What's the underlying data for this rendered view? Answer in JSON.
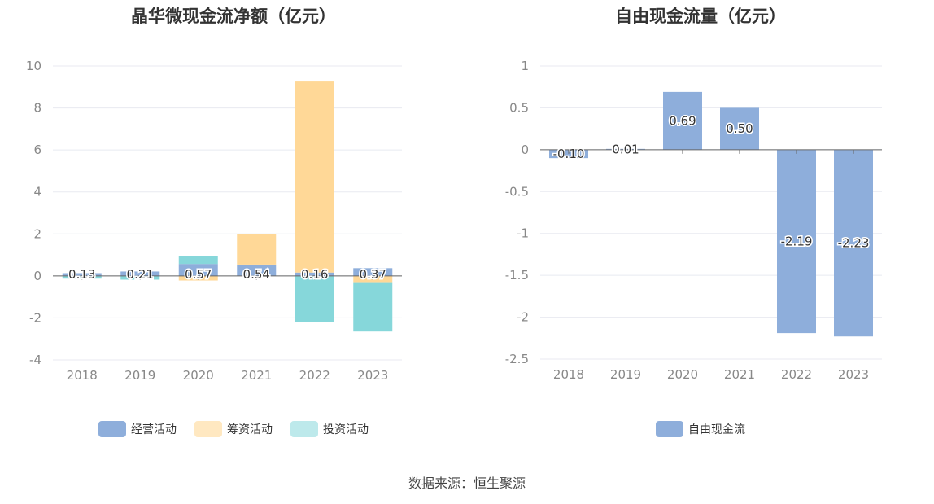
{
  "source_text": "数据来源：恒生聚源",
  "chart_data": [
    {
      "type": "bar",
      "stacked": true,
      "title": "晶华微现金流净额（亿元）",
      "categories": [
        "2018",
        "2019",
        "2020",
        "2021",
        "2022",
        "2023"
      ],
      "ylim": [
        -4,
        10
      ],
      "yticks": [
        -4,
        -2,
        0,
        2,
        4,
        6,
        8,
        10
      ],
      "ytick_labels": [
        "-4",
        "-2",
        "0",
        "2",
        "4",
        "6",
        "8",
        "10"
      ],
      "grid": true,
      "legend_position": "bottom",
      "series": [
        {
          "name": "经营活动",
          "color": "#8eaedb",
          "values": [
            0.13,
            0.21,
            0.57,
            0.54,
            0.16,
            0.37
          ],
          "labels": [
            "0.13",
            "0.21",
            "0.57",
            "0.54",
            "0.16",
            "0.37"
          ]
        },
        {
          "name": "筹资活动",
          "color": "#ffd897",
          "values": [
            0.0,
            0.0,
            -0.22,
            1.45,
            9.1,
            -0.3
          ]
        },
        {
          "name": "投资活动",
          "color": "#86d7da",
          "values": [
            -0.13,
            -0.18,
            0.37,
            0.0,
            -2.2,
            -2.35
          ]
        }
      ]
    },
    {
      "type": "bar",
      "title": "自由现金流量（亿元）",
      "categories": [
        "2018",
        "2019",
        "2020",
        "2021",
        "2022",
        "2023"
      ],
      "ylim": [
        -2.5,
        1
      ],
      "yticks": [
        -2.5,
        -2,
        -1.5,
        -1,
        -0.5,
        0,
        0.5,
        1
      ],
      "ytick_labels": [
        "-2.5",
        "-2",
        "-1.5",
        "-1",
        "-0.5",
        "0",
        "0.5",
        "1"
      ],
      "grid": true,
      "legend_position": "bottom",
      "series": [
        {
          "name": "自由现金流",
          "color": "#8eaedb",
          "values": [
            -0.1,
            0.01,
            0.69,
            0.5,
            -2.19,
            -2.23
          ],
          "labels": [
            "-0.10",
            "0.01",
            "0.69",
            "0.50",
            "-2.19",
            "-2.23"
          ]
        }
      ]
    }
  ]
}
